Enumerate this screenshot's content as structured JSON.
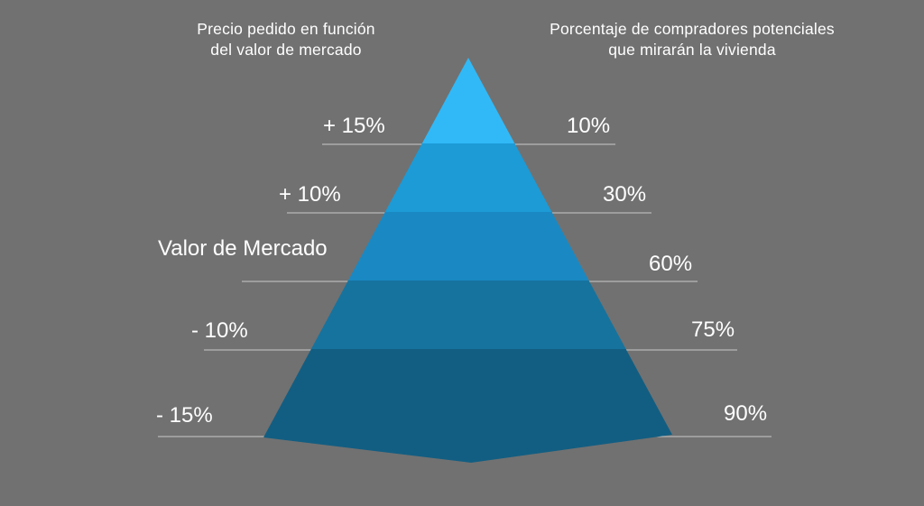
{
  "headers": {
    "price": [
      "Precio pedido en función",
      "del valor de mercado"
    ],
    "buyers": [
      "Porcentaje de compradores potenciales",
      "que mirarán la vivienda"
    ]
  },
  "tiers": [
    {
      "price": "+ 15%",
      "buyers": "10%",
      "color": "#31b9f7"
    },
    {
      "price": "+ 10%",
      "buyers": "30%",
      "color": "#1c9bd7"
    },
    {
      "price": "Valor de Mercado",
      "buyers": "60%",
      "color": "#1a89c3"
    },
    {
      "price": "- 10%",
      "buyers": "75%",
      "color": "#16739e"
    },
    {
      "price": "- 15%",
      "buyers": "90%",
      "color": "#125e82"
    }
  ],
  "colors": {
    "background": "#717171",
    "guide_line": "#c9c9c9"
  }
}
